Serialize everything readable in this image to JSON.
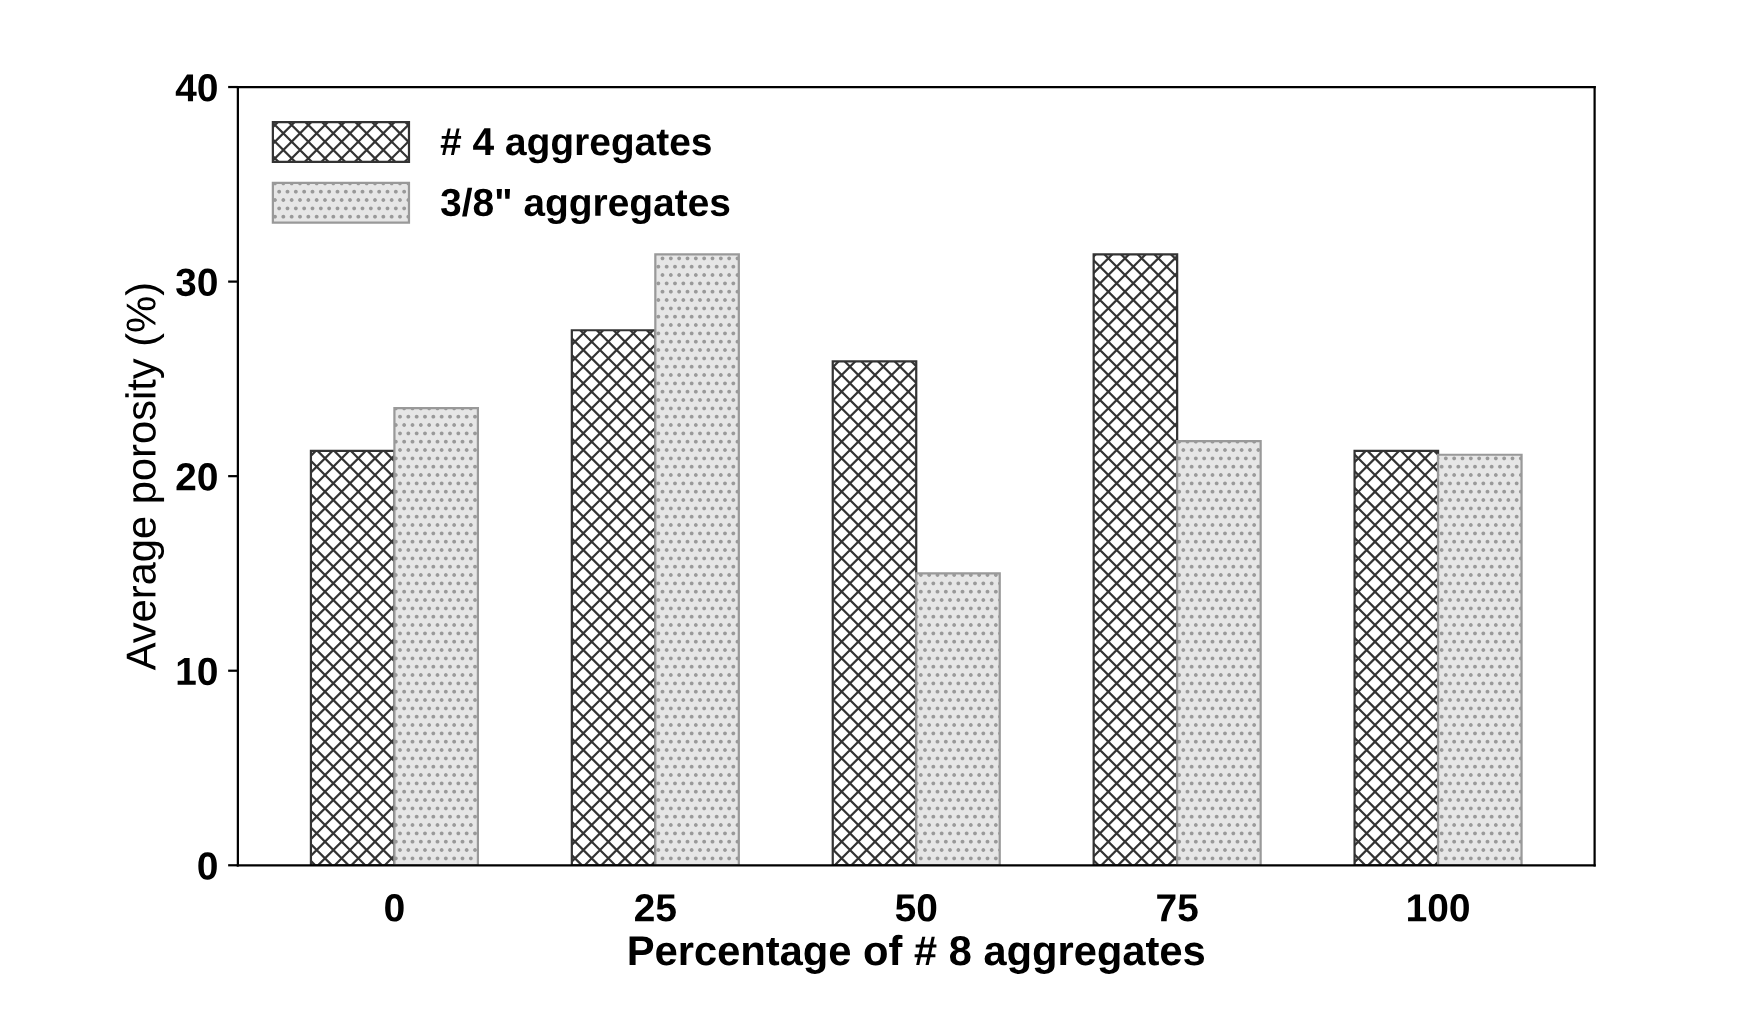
{
  "chart_data": {
    "type": "bar",
    "xlabel": "Percentage of # 8 aggregates",
    "ylabel": "Average porosity (%)",
    "categories": [
      "0",
      "25",
      "50",
      "75",
      "100"
    ],
    "series": [
      {
        "name": "# 4 aggregates",
        "color": "#333333",
        "values": [
          21.3,
          27.5,
          25.9,
          31.4,
          21.3
        ]
      },
      {
        "name": "3/8\" aggregates",
        "color": "#999999",
        "values": [
          23.5,
          31.4,
          15.0,
          21.8,
          21.1
        ]
      }
    ],
    "ylim": [
      0,
      40
    ],
    "yticks": [
      0,
      10,
      20,
      30,
      40
    ],
    "grid": false,
    "legend": "top left"
  }
}
